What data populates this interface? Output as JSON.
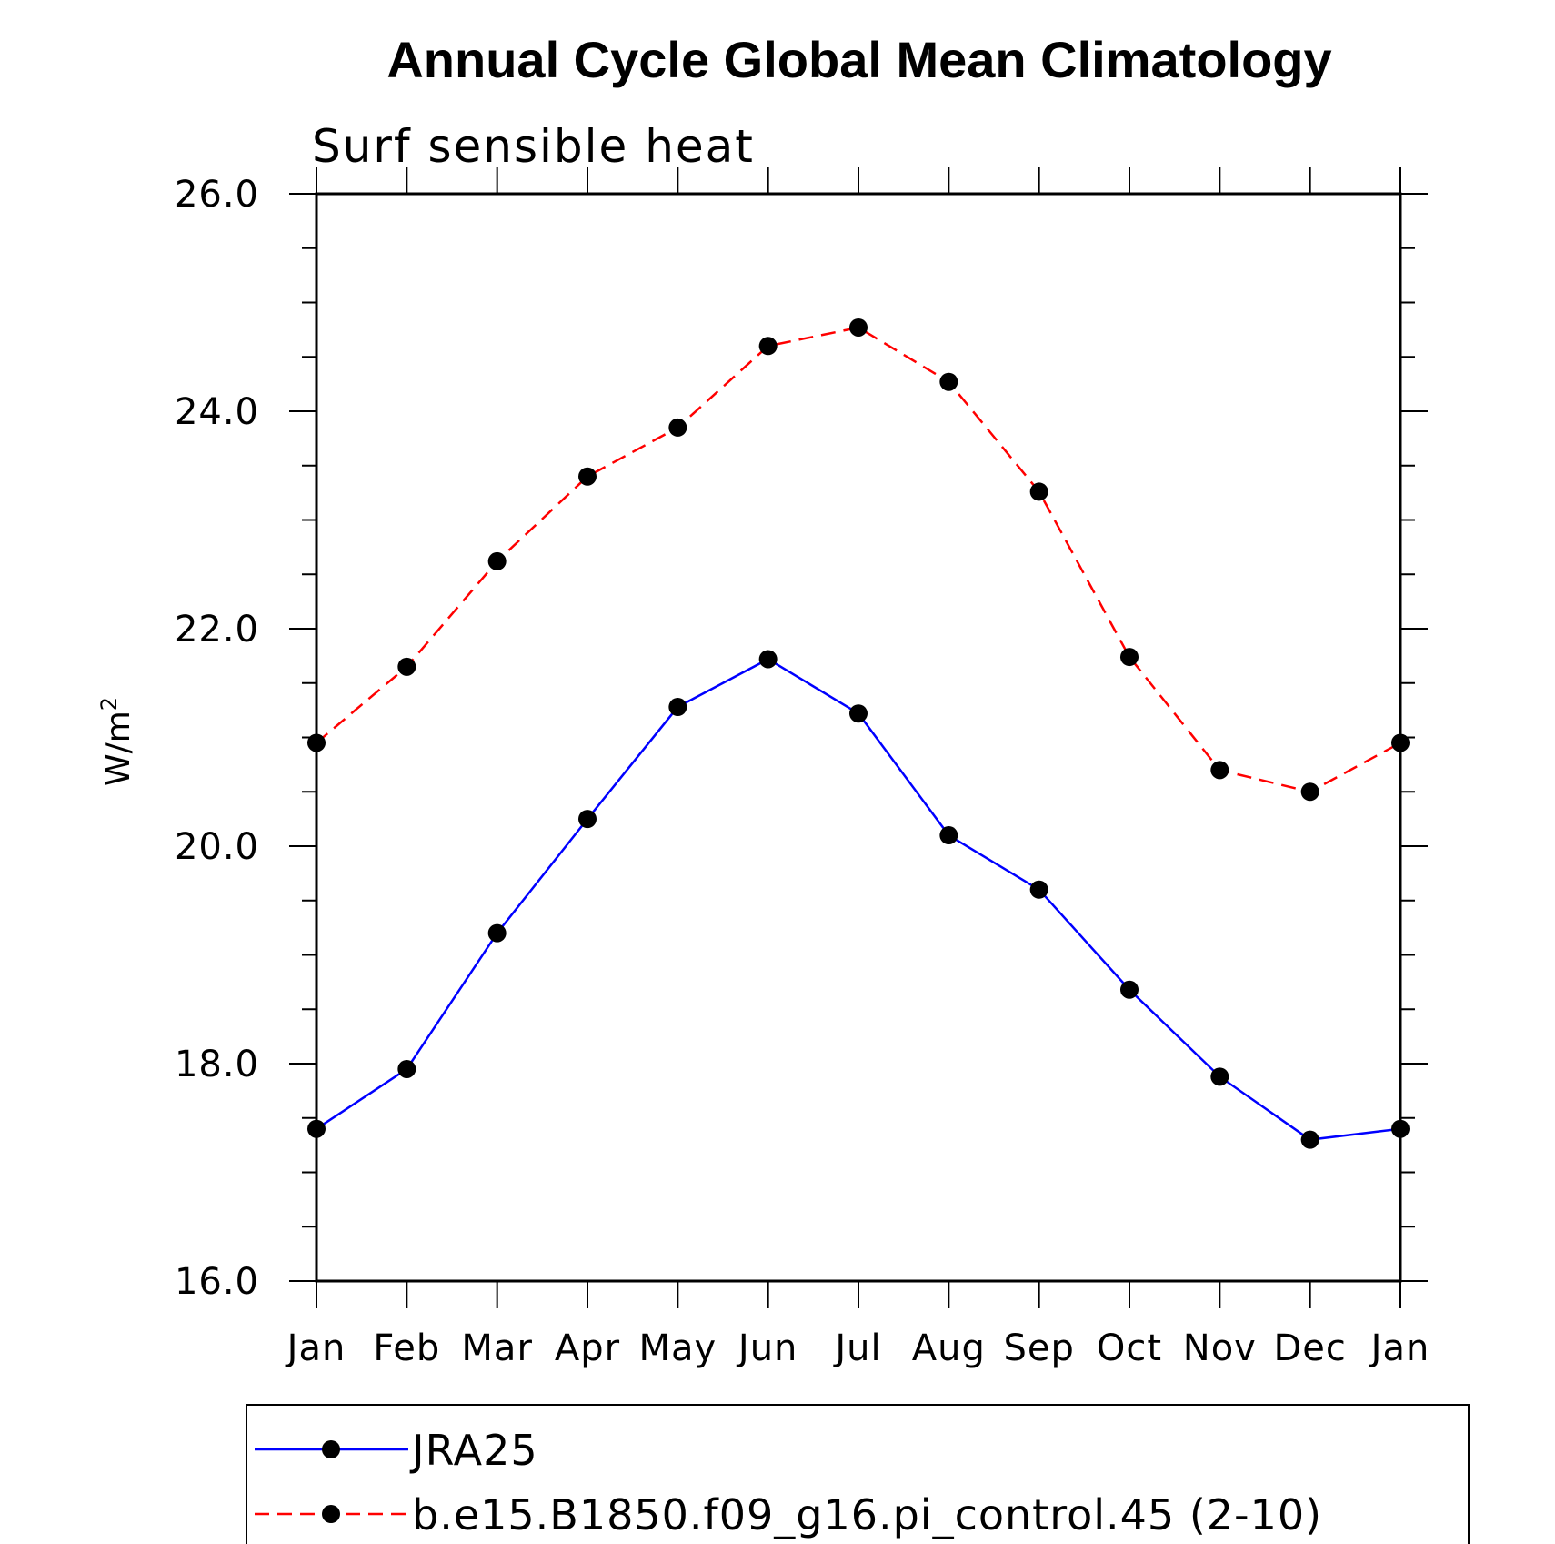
{
  "chart_data": {
    "type": "line",
    "title": "Annual Cycle Global Mean Climatology",
    "subtitle": "Surf sensible heat",
    "ylabel": "W/m",
    "ylabel_superscript": "2",
    "xlabel": "",
    "categories": [
      "Jan",
      "Feb",
      "Mar",
      "Apr",
      "May",
      "Jun",
      "Jul",
      "Aug",
      "Sep",
      "Oct",
      "Nov",
      "Dec",
      "Jan"
    ],
    "ylim": [
      16.0,
      26.0
    ],
    "yticks": [
      "16.0",
      "18.0",
      "20.0",
      "22.0",
      "24.0",
      "26.0"
    ],
    "y_minor_step": 0.5,
    "grid": false,
    "legend_position": "bottom",
    "series": [
      {
        "name": "JRA25",
        "color": "#0000ff",
        "dash": "solid",
        "marker": "filled-circle",
        "values": [
          17.4,
          17.95,
          19.2,
          20.25,
          21.28,
          21.72,
          21.22,
          20.1,
          19.6,
          18.68,
          17.88,
          17.3,
          17.4
        ]
      },
      {
        "name": "b.e15.B1850.f09_g16.pi_control.45 (2-10)",
        "color": "#ff0000",
        "dash": "dashed",
        "marker": "filled-circle",
        "values": [
          20.95,
          21.65,
          22.62,
          23.4,
          23.85,
          24.6,
          24.77,
          24.27,
          23.26,
          21.74,
          20.7,
          20.5,
          20.95
        ]
      }
    ]
  }
}
